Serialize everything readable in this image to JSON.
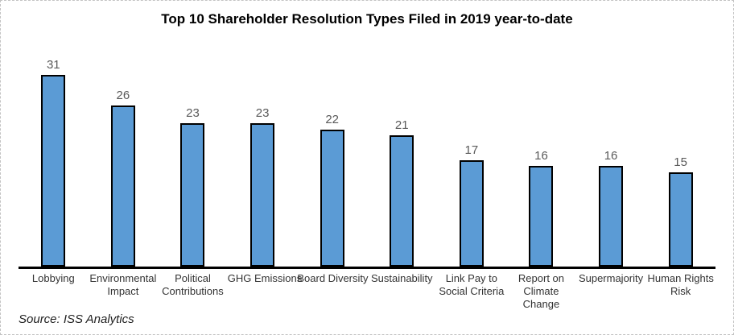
{
  "chart_data": {
    "type": "bar",
    "title": "Top 10 Shareholder Resolution Types Filed in 2019 year-to-date",
    "categories": [
      "Lobbying",
      "Environmental Impact",
      "Political Contributions",
      "GHG Emissions",
      "Board Diversity",
      "Sustainability",
      "Link Pay to Social Criteria",
      "Report on Climate Change",
      "Supermajority",
      "Human Rights Risk"
    ],
    "values": [
      31,
      26,
      23,
      23,
      22,
      21,
      17,
      16,
      16,
      15
    ],
    "tick_label_lines": [
      [
        "Lobbying"
      ],
      [
        "Environmental",
        "Impact"
      ],
      [
        "Political",
        "Contributions"
      ],
      [
        "GHG Emissions"
      ],
      [
        "Board Diversity"
      ],
      [
        "Sustainability"
      ],
      [
        "Link Pay to",
        "Social Criteria"
      ],
      [
        "Report on",
        "Climate",
        "Change"
      ],
      [
        "Supermajority"
      ],
      [
        "Human Rights",
        "Risk"
      ]
    ],
    "xlabel": "",
    "ylabel": "",
    "ylim": [
      0,
      35
    ],
    "grid": false,
    "legend": "none",
    "data_labels": true,
    "bar_color": "#5B9BD5",
    "bar_border_color": "#000000",
    "value_label_color": "#595959"
  },
  "footer": {
    "source": "Source: ISS Analytics"
  }
}
